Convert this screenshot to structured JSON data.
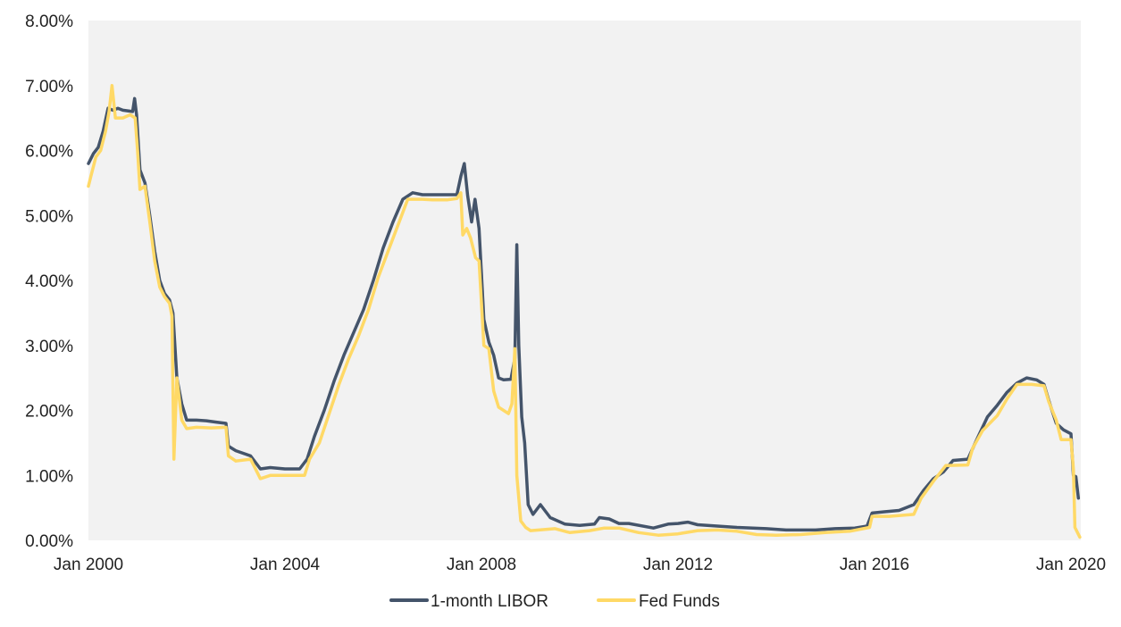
{
  "chart_data": {
    "type": "line",
    "title": "",
    "xlabel": "",
    "ylabel": "",
    "x_range": [
      2000.0,
      2020.2
    ],
    "ylim": [
      0,
      8
    ],
    "y_ticks": [
      "0.00%",
      "1.00%",
      "2.00%",
      "3.00%",
      "4.00%",
      "5.00%",
      "6.00%",
      "7.00%",
      "8.00%"
    ],
    "x_ticks": [
      {
        "value": 2000,
        "label": "Jan 2000"
      },
      {
        "value": 2004,
        "label": "Jan 2004"
      },
      {
        "value": 2008,
        "label": "Jan 2008"
      },
      {
        "value": 2012,
        "label": "Jan 2012"
      },
      {
        "value": 2016,
        "label": "Jan 2016"
      },
      {
        "value": 2020,
        "label": "Jan 2020"
      }
    ],
    "plot_background": "#f2f2f2",
    "grid": false,
    "legend_position": "bottom-center",
    "series": [
      {
        "name": "1-month LIBOR",
        "color": "#44546a",
        "points": [
          [
            2000.0,
            5.8
          ],
          [
            2000.1,
            5.95
          ],
          [
            2000.2,
            6.05
          ],
          [
            2000.3,
            6.3
          ],
          [
            2000.4,
            6.65
          ],
          [
            2000.5,
            6.62
          ],
          [
            2000.6,
            6.65
          ],
          [
            2000.7,
            6.62
          ],
          [
            2000.9,
            6.6
          ],
          [
            2000.94,
            6.8
          ],
          [
            2000.98,
            6.55
          ],
          [
            2001.05,
            5.7
          ],
          [
            2001.15,
            5.5
          ],
          [
            2001.25,
            5.0
          ],
          [
            2001.35,
            4.45
          ],
          [
            2001.45,
            4.0
          ],
          [
            2001.55,
            3.8
          ],
          [
            2001.65,
            3.7
          ],
          [
            2001.72,
            3.5
          ],
          [
            2001.8,
            2.5
          ],
          [
            2001.9,
            2.1
          ],
          [
            2002.0,
            1.85
          ],
          [
            2002.2,
            1.85
          ],
          [
            2002.4,
            1.84
          ],
          [
            2002.6,
            1.82
          ],
          [
            2002.8,
            1.8
          ],
          [
            2002.85,
            1.45
          ],
          [
            2003.0,
            1.38
          ],
          [
            2003.3,
            1.3
          ],
          [
            2003.5,
            1.1
          ],
          [
            2003.7,
            1.12
          ],
          [
            2004.0,
            1.1
          ],
          [
            2004.3,
            1.1
          ],
          [
            2004.45,
            1.25
          ],
          [
            2004.6,
            1.6
          ],
          [
            2004.8,
            2.0
          ],
          [
            2005.0,
            2.45
          ],
          [
            2005.2,
            2.85
          ],
          [
            2005.4,
            3.2
          ],
          [
            2005.6,
            3.55
          ],
          [
            2005.8,
            4.0
          ],
          [
            2006.0,
            4.5
          ],
          [
            2006.2,
            4.9
          ],
          [
            2006.4,
            5.25
          ],
          [
            2006.6,
            5.35
          ],
          [
            2006.8,
            5.32
          ],
          [
            2007.0,
            5.32
          ],
          [
            2007.3,
            5.32
          ],
          [
            2007.5,
            5.32
          ],
          [
            2007.58,
            5.6
          ],
          [
            2007.65,
            5.8
          ],
          [
            2007.72,
            5.3
          ],
          [
            2007.8,
            4.9
          ],
          [
            2007.87,
            5.25
          ],
          [
            2007.95,
            4.8
          ],
          [
            2008.05,
            3.4
          ],
          [
            2008.15,
            3.05
          ],
          [
            2008.25,
            2.85
          ],
          [
            2008.35,
            2.5
          ],
          [
            2008.45,
            2.47
          ],
          [
            2008.6,
            2.48
          ],
          [
            2008.68,
            2.8
          ],
          [
            2008.72,
            4.55
          ],
          [
            2008.76,
            3.0
          ],
          [
            2008.82,
            1.9
          ],
          [
            2008.88,
            1.5
          ],
          [
            2008.95,
            0.55
          ],
          [
            2009.05,
            0.4
          ],
          [
            2009.2,
            0.55
          ],
          [
            2009.4,
            0.35
          ],
          [
            2009.7,
            0.25
          ],
          [
            2010.0,
            0.23
          ],
          [
            2010.3,
            0.25
          ],
          [
            2010.4,
            0.35
          ],
          [
            2010.6,
            0.33
          ],
          [
            2010.8,
            0.26
          ],
          [
            2011.0,
            0.26
          ],
          [
            2011.5,
            0.19
          ],
          [
            2011.8,
            0.25
          ],
          [
            2012.0,
            0.26
          ],
          [
            2012.2,
            0.28
          ],
          [
            2012.4,
            0.24
          ],
          [
            2012.8,
            0.22
          ],
          [
            2013.2,
            0.2
          ],
          [
            2013.8,
            0.18
          ],
          [
            2014.2,
            0.16
          ],
          [
            2014.8,
            0.16
          ],
          [
            2015.2,
            0.18
          ],
          [
            2015.6,
            0.19
          ],
          [
            2015.85,
            0.22
          ],
          [
            2015.95,
            0.42
          ],
          [
            2016.2,
            0.44
          ],
          [
            2016.5,
            0.46
          ],
          [
            2016.8,
            0.55
          ],
          [
            2017.0,
            0.77
          ],
          [
            2017.2,
            0.95
          ],
          [
            2017.4,
            1.05
          ],
          [
            2017.6,
            1.23
          ],
          [
            2017.9,
            1.25
          ],
          [
            2018.1,
            1.58
          ],
          [
            2018.3,
            1.9
          ],
          [
            2018.5,
            2.08
          ],
          [
            2018.7,
            2.28
          ],
          [
            2018.9,
            2.42
          ],
          [
            2019.1,
            2.5
          ],
          [
            2019.3,
            2.47
          ],
          [
            2019.45,
            2.4
          ],
          [
            2019.55,
            2.15
          ],
          [
            2019.7,
            1.8
          ],
          [
            2019.85,
            1.7
          ],
          [
            2020.0,
            1.64
          ],
          [
            2020.05,
            1.0
          ],
          [
            2020.1,
            0.98
          ],
          [
            2020.15,
            0.65
          ]
        ]
      },
      {
        "name": "Fed Funds",
        "color": "#ffd966",
        "points": [
          [
            2000.0,
            5.45
          ],
          [
            2000.05,
            5.6
          ],
          [
            2000.15,
            5.9
          ],
          [
            2000.25,
            6.0
          ],
          [
            2000.35,
            6.3
          ],
          [
            2000.42,
            6.6
          ],
          [
            2000.48,
            7.0
          ],
          [
            2000.55,
            6.5
          ],
          [
            2000.7,
            6.5
          ],
          [
            2000.85,
            6.55
          ],
          [
            2000.95,
            6.5
          ],
          [
            2001.0,
            6.0
          ],
          [
            2001.05,
            5.4
          ],
          [
            2001.15,
            5.45
          ],
          [
            2001.25,
            4.9
          ],
          [
            2001.35,
            4.3
          ],
          [
            2001.45,
            3.9
          ],
          [
            2001.55,
            3.75
          ],
          [
            2001.65,
            3.65
          ],
          [
            2001.7,
            3.45
          ],
          [
            2001.74,
            1.25
          ],
          [
            2001.8,
            2.5
          ],
          [
            2001.9,
            1.85
          ],
          [
            2002.0,
            1.72
          ],
          [
            2002.2,
            1.74
          ],
          [
            2002.5,
            1.73
          ],
          [
            2002.8,
            1.74
          ],
          [
            2002.85,
            1.3
          ],
          [
            2003.0,
            1.22
          ],
          [
            2003.3,
            1.25
          ],
          [
            2003.5,
            0.95
          ],
          [
            2003.7,
            1.0
          ],
          [
            2004.0,
            1.0
          ],
          [
            2004.4,
            1.0
          ],
          [
            2004.5,
            1.25
          ],
          [
            2004.7,
            1.5
          ],
          [
            2004.9,
            1.95
          ],
          [
            2005.1,
            2.4
          ],
          [
            2005.3,
            2.8
          ],
          [
            2005.5,
            3.15
          ],
          [
            2005.7,
            3.55
          ],
          [
            2005.9,
            4.05
          ],
          [
            2006.1,
            4.45
          ],
          [
            2006.3,
            4.85
          ],
          [
            2006.5,
            5.25
          ],
          [
            2006.8,
            5.25
          ],
          [
            2007.0,
            5.24
          ],
          [
            2007.3,
            5.24
          ],
          [
            2007.5,
            5.26
          ],
          [
            2007.58,
            5.35
          ],
          [
            2007.62,
            4.7
          ],
          [
            2007.7,
            4.8
          ],
          [
            2007.78,
            4.65
          ],
          [
            2007.88,
            4.35
          ],
          [
            2007.95,
            4.3
          ],
          [
            2008.05,
            3.0
          ],
          [
            2008.15,
            2.95
          ],
          [
            2008.25,
            2.3
          ],
          [
            2008.35,
            2.05
          ],
          [
            2008.45,
            2.0
          ],
          [
            2008.55,
            1.95
          ],
          [
            2008.62,
            2.1
          ],
          [
            2008.68,
            2.95
          ],
          [
            2008.72,
            1.0
          ],
          [
            2008.8,
            0.3
          ],
          [
            2008.9,
            0.2
          ],
          [
            2009.0,
            0.15
          ],
          [
            2009.5,
            0.18
          ],
          [
            2009.8,
            0.12
          ],
          [
            2010.2,
            0.15
          ],
          [
            2010.5,
            0.19
          ],
          [
            2010.8,
            0.19
          ],
          [
            2011.2,
            0.12
          ],
          [
            2011.6,
            0.08
          ],
          [
            2012.0,
            0.1
          ],
          [
            2012.4,
            0.15
          ],
          [
            2012.8,
            0.16
          ],
          [
            2013.2,
            0.14
          ],
          [
            2013.6,
            0.09
          ],
          [
            2014.0,
            0.08
          ],
          [
            2014.5,
            0.09
          ],
          [
            2015.0,
            0.12
          ],
          [
            2015.5,
            0.14
          ],
          [
            2015.9,
            0.2
          ],
          [
            2015.95,
            0.37
          ],
          [
            2016.3,
            0.37
          ],
          [
            2016.8,
            0.4
          ],
          [
            2016.95,
            0.65
          ],
          [
            2017.2,
            0.91
          ],
          [
            2017.45,
            1.15
          ],
          [
            2017.9,
            1.16
          ],
          [
            2018.0,
            1.42
          ],
          [
            2018.2,
            1.69
          ],
          [
            2018.5,
            1.92
          ],
          [
            2018.7,
            2.18
          ],
          [
            2018.9,
            2.4
          ],
          [
            2019.2,
            2.4
          ],
          [
            2019.45,
            2.38
          ],
          [
            2019.55,
            2.13
          ],
          [
            2019.7,
            1.85
          ],
          [
            2019.8,
            1.55
          ],
          [
            2020.0,
            1.55
          ],
          [
            2020.05,
            1.1
          ],
          [
            2020.08,
            0.2
          ],
          [
            2020.18,
            0.05
          ]
        ]
      }
    ]
  }
}
